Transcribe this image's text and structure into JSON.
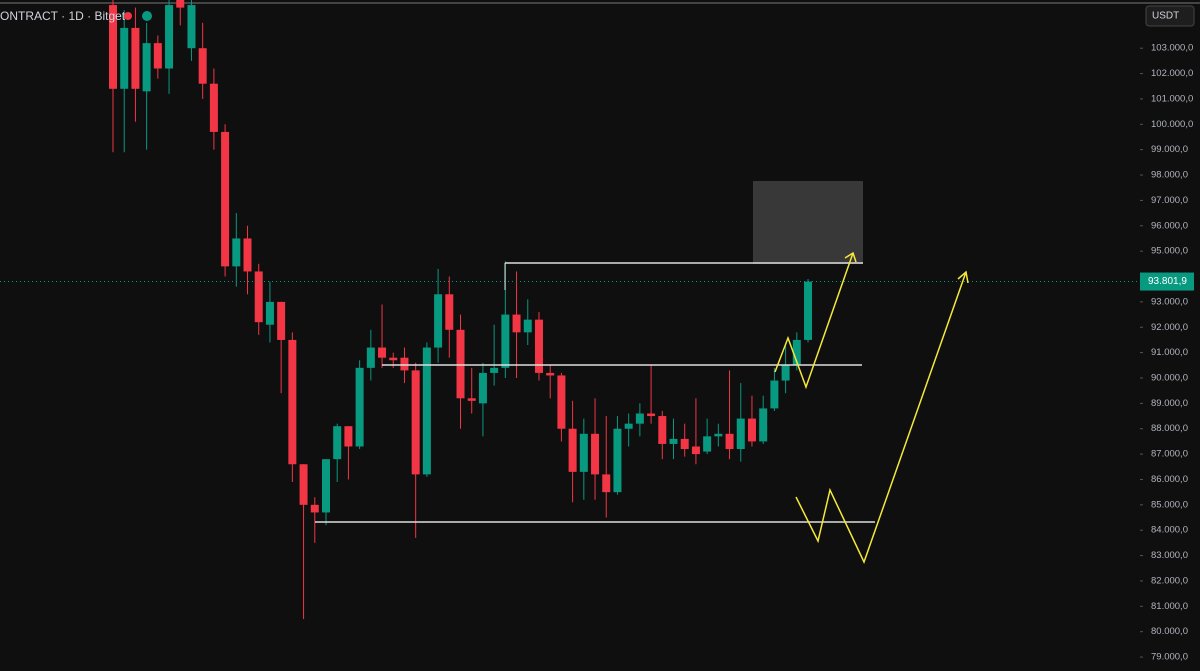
{
  "chart_data": {
    "type": "candlestick",
    "title": "ONTRACT · 1D · Bitget",
    "currency": "USDT",
    "up_color": "#089981",
    "down_color": "#f23645",
    "open": [
      104700,
      101400,
      103800,
      101300,
      103200,
      102200,
      104900,
      103000,
      103000,
      101600,
      99700,
      94400,
      95500,
      94200,
      92100,
      93000,
      91500,
      86600,
      85000,
      84700,
      86800,
      88100,
      87300,
      90400,
      91200,
      90800,
      90800,
      90300,
      86200,
      91200,
      93300,
      91900,
      89200,
      89000,
      90200,
      90400,
      92500,
      91800,
      92300,
      90200,
      90100,
      88000,
      86300,
      87800,
      86200,
      85500,
      88000,
      88200,
      88600,
      88500,
      87400,
      87600,
      87300,
      87100,
      87700,
      87800,
      87200,
      88400,
      87500,
      88800,
      89900,
      90500,
      91500
    ],
    "high": [
      104900,
      104500,
      104600,
      104000,
      103500,
      104900,
      104900,
      104900,
      104000,
      102200,
      100000,
      96500,
      96000,
      94500,
      93800,
      93000,
      91800,
      86600,
      85300,
      86800,
      88200,
      88100,
      90700,
      91900,
      92900,
      91000,
      91200,
      90600,
      91400,
      94300,
      94000,
      92500,
      90400,
      90600,
      92100,
      94600,
      94200,
      93100,
      92600,
      90500,
      90200,
      89100,
      88400,
      89200,
      88500,
      88500,
      88600,
      89000,
      90500,
      88700,
      88400,
      88200,
      89200,
      88400,
      88200,
      90300,
      89800,
      89300,
      89300,
      90400,
      91300,
      91800,
      93900
    ],
    "low": [
      98900,
      98900,
      100100,
      99000,
      101800,
      101200,
      103900,
      102500,
      101000,
      99000,
      94000,
      93600,
      93300,
      91700,
      91400,
      89400,
      85900,
      80500,
      83500,
      84200,
      85900,
      86000,
      87200,
      89900,
      90400,
      90400,
      89800,
      83700,
      86100,
      90600,
      90800,
      88000,
      88600,
      87700,
      89700,
      90000,
      90000,
      91300,
      89900,
      89200,
      87500,
      85100,
      85200,
      85200,
      84500,
      85400,
      87300,
      87700,
      88200,
      86800,
      86800,
      86900,
      86600,
      87000,
      87300,
      86800,
      86700,
      87300,
      87400,
      88700,
      89400,
      90300,
      91400
    ],
    "close": [
      101400,
      103800,
      101400,
      103200,
      102200,
      104700,
      104600,
      104700,
      101600,
      99700,
      94400,
      95500,
      94200,
      92200,
      93000,
      91500,
      86600,
      85000,
      84700,
      86800,
      88100,
      87300,
      90400,
      91200,
      90800,
      90700,
      90300,
      86200,
      91200,
      93300,
      91900,
      89200,
      89100,
      90200,
      90400,
      92500,
      91800,
      92300,
      90200,
      90100,
      88000,
      86300,
      87800,
      86200,
      85500,
      88000,
      88200,
      88600,
      88500,
      87400,
      87600,
      87200,
      87000,
      87700,
      87800,
      87200,
      88400,
      87500,
      88800,
      89900,
      90500,
      91500,
      93801.9
    ],
    "last_price": {
      "value": 93801.9,
      "label": "93.801,9"
    },
    "ylim": [
      78450,
      104900
    ],
    "yticks": [
      {
        "value": 79000,
        "label": "79.000,0"
      },
      {
        "value": 80000,
        "label": "80.000,0"
      },
      {
        "value": 81000,
        "label": "81.000,0"
      },
      {
        "value": 82000,
        "label": "82.000,0"
      },
      {
        "value": 83000,
        "label": "83.000,0"
      },
      {
        "value": 84000,
        "label": "84.000,0"
      },
      {
        "value": 85000,
        "label": "85.000,0"
      },
      {
        "value": 86000,
        "label": "86.000,0"
      },
      {
        "value": 87000,
        "label": "87.000,0"
      },
      {
        "value": 88000,
        "label": "88.000,0"
      },
      {
        "value": 89000,
        "label": "89.000,0"
      },
      {
        "value": 90000,
        "label": "90.000,0"
      },
      {
        "value": 91000,
        "label": "91.000,0"
      },
      {
        "value": 92000,
        "label": "92.000,0"
      },
      {
        "value": 93000,
        "label": "93.000,0"
      },
      {
        "value": 94000,
        "label": "94.000,0"
      },
      {
        "value": 95000,
        "label": "95.000,0"
      },
      {
        "value": 96000,
        "label": "96.000,0"
      },
      {
        "value": 97000,
        "label": "97.000,0"
      },
      {
        "value": 98000,
        "label": "98.000,0"
      },
      {
        "value": 99000,
        "label": "99.000,0"
      },
      {
        "value": 100000,
        "label": "100.000,0"
      },
      {
        "value": 101000,
        "label": "101.000,0"
      },
      {
        "value": 102000,
        "label": "102.000,0"
      },
      {
        "value": 103000,
        "label": "103.000,0"
      }
    ]
  }
}
